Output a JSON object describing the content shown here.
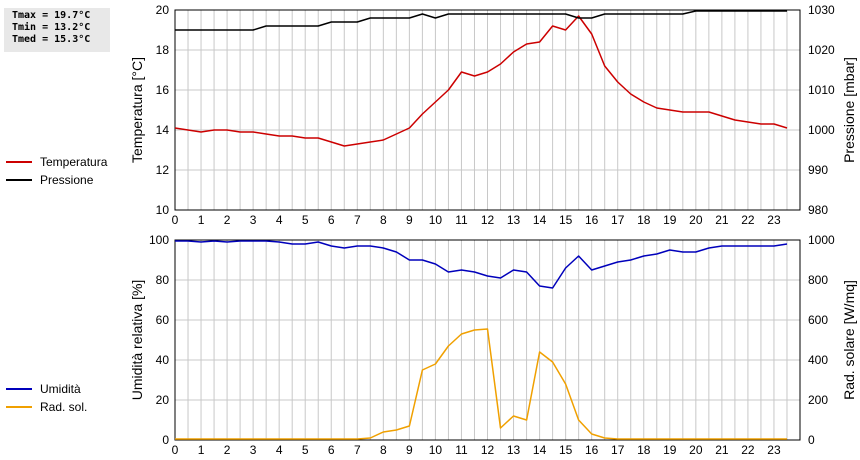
{
  "stats": {
    "tmax": "Tmax = 19.7°C",
    "tmin": "Tmin = 13.2°C",
    "tmed": "Tmed = 15.3°C"
  },
  "colors": {
    "temperature": "#cc0000",
    "pressure": "#000000",
    "humidity": "#0000bb",
    "radiation": "#f0a000",
    "grid": "#c8c8c8"
  },
  "chart_data": [
    {
      "type": "line",
      "x": [
        0,
        0.5,
        1,
        1.5,
        2,
        2.5,
        3,
        3.5,
        4,
        4.5,
        5,
        5.5,
        6,
        6.5,
        7,
        7.5,
        8,
        8.5,
        9,
        9.5,
        10,
        10.5,
        11,
        11.5,
        12,
        12.5,
        13,
        13.5,
        14,
        14.5,
        15,
        15.5,
        16,
        16.5,
        17,
        17.5,
        18,
        18.5,
        19,
        19.5,
        20,
        20.5,
        21,
        21.5,
        22,
        22.5,
        23,
        23.5
      ],
      "ylabel": "Temperatura [°C]",
      "ylabel_right": "Pressione [mbar]",
      "ylim": [
        10,
        20
      ],
      "ylim_right": [
        980,
        1030
      ],
      "xlim": [
        0,
        24
      ],
      "x_ticks": [
        "0",
        "1",
        "2",
        "3",
        "4",
        "5",
        "6",
        "7",
        "8",
        "9",
        "10",
        "11",
        "12",
        "13",
        "14",
        "15",
        "16",
        "17",
        "18",
        "19",
        "20",
        "21",
        "22",
        "23"
      ],
      "y_ticks": [
        "10",
        "12",
        "14",
        "16",
        "18",
        "20"
      ],
      "y_ticks_right": [
        "980",
        "990",
        "1000",
        "1010",
        "1020",
        "1030"
      ],
      "grid": true,
      "legend_position": "left",
      "series": [
        {
          "name": "Temperatura",
          "axis": "left",
          "values": [
            14.1,
            14.0,
            13.9,
            14.0,
            14.0,
            13.9,
            13.9,
            13.8,
            13.7,
            13.7,
            13.6,
            13.6,
            13.4,
            13.2,
            13.3,
            13.4,
            13.5,
            13.8,
            14.1,
            14.8,
            15.4,
            16.0,
            16.9,
            16.7,
            16.9,
            17.3,
            17.9,
            18.3,
            18.4,
            19.2,
            19.0,
            19.7,
            18.8,
            17.2,
            16.4,
            15.8,
            15.4,
            15.1,
            15.0,
            14.9,
            14.9,
            14.9,
            14.7,
            14.5,
            14.4,
            14.3,
            14.3,
            14.1
          ]
        },
        {
          "name": "Pressione",
          "axis": "right",
          "values": [
            1025,
            1025,
            1025,
            1025,
            1025,
            1025,
            1025,
            1026,
            1026,
            1026,
            1026,
            1026,
            1027,
            1027,
            1027,
            1028,
            1028,
            1028,
            1028,
            1029,
            1028,
            1029,
            1029,
            1029,
            1029,
            1029,
            1029,
            1029,
            1029,
            1029,
            1029,
            1028,
            1028,
            1029,
            1029,
            1029,
            1029,
            1029,
            1029,
            1029,
            1030,
            1030,
            1030,
            1030,
            1030,
            1030,
            1030,
            1030
          ]
        }
      ]
    },
    {
      "type": "line",
      "x": [
        0,
        0.5,
        1,
        1.5,
        2,
        2.5,
        3,
        3.5,
        4,
        4.5,
        5,
        5.5,
        6,
        6.5,
        7,
        7.5,
        8,
        8.5,
        9,
        9.5,
        10,
        10.5,
        11,
        11.5,
        12,
        12.5,
        13,
        13.5,
        14,
        14.5,
        15,
        15.5,
        16,
        16.5,
        17,
        17.5,
        18,
        18.5,
        19,
        19.5,
        20,
        20.5,
        21,
        21.5,
        22,
        22.5,
        23,
        23.5
      ],
      "ylabel": "Umidità relativa [%]",
      "ylabel_right": "Rad. solare [W/mq]",
      "ylim": [
        0,
        100
      ],
      "ylim_right": [
        0,
        1000
      ],
      "xlim": [
        0,
        24
      ],
      "x_ticks": [
        "0",
        "1",
        "2",
        "3",
        "4",
        "5",
        "6",
        "7",
        "8",
        "9",
        "10",
        "11",
        "12",
        "13",
        "14",
        "15",
        "16",
        "17",
        "18",
        "19",
        "20",
        "21",
        "22",
        "23"
      ],
      "y_ticks": [
        "0",
        "20",
        "40",
        "60",
        "80",
        "100"
      ],
      "y_ticks_right": [
        "0",
        "200",
        "400",
        "600",
        "800",
        "1000"
      ],
      "grid": true,
      "legend_position": "left",
      "series": [
        {
          "name": "Umidità",
          "axis": "left",
          "values": [
            100,
            100,
            99,
            100,
            99,
            100,
            100,
            100,
            99,
            98,
            98,
            99,
            97,
            96,
            97,
            97,
            96,
            94,
            90,
            90,
            88,
            84,
            85,
            84,
            82,
            81,
            85,
            84,
            77,
            76,
            86,
            92,
            85,
            87,
            89,
            90,
            92,
            93,
            95,
            94,
            94,
            96,
            97,
            97,
            97,
            97,
            97,
            98
          ]
        },
        {
          "name": "Rad. sol.",
          "axis": "right",
          "values": [
            0,
            0,
            0,
            0,
            0,
            0,
            0,
            0,
            0,
            0,
            0,
            0,
            0,
            0,
            0,
            10,
            40,
            50,
            70,
            350,
            380,
            470,
            530,
            550,
            555,
            60,
            120,
            100,
            440,
            390,
            280,
            100,
            30,
            10,
            0,
            0,
            0,
            0,
            0,
            0,
            0,
            0,
            0,
            0,
            0,
            0,
            0,
            0
          ]
        }
      ]
    }
  ]
}
